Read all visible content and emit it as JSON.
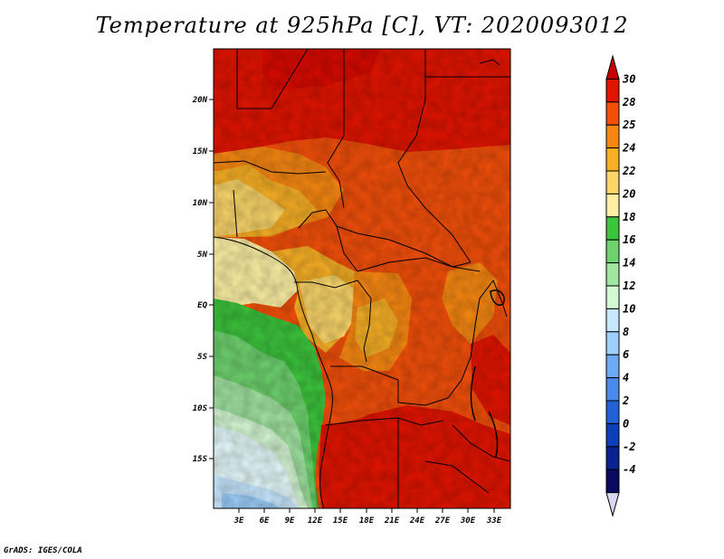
{
  "title": "Temperature at 925hPa [C], VT: 2020093012",
  "credit": "GrADS: IGES/COLA",
  "map": {
    "lat_labels": [
      "20N",
      "15N",
      "10N",
      "5N",
      "EQ",
      "5S",
      "10S",
      "15S"
    ],
    "lon_labels": [
      "3E",
      "6E",
      "9E",
      "12E",
      "15E",
      "18E",
      "21E",
      "24E",
      "27E",
      "30E",
      "33E"
    ]
  },
  "colorbar": {
    "labels": [
      "30",
      "28",
      "25",
      "24",
      "22",
      "20",
      "18",
      "16",
      "14",
      "12",
      "10",
      "8",
      "6",
      "4",
      "2",
      "0",
      "-2",
      "-4"
    ],
    "colors": [
      "#c80000",
      "#e21400",
      "#f24f0a",
      "#f68712",
      "#f7b025",
      "#f9d56a",
      "#fdf0a4",
      "#3cc43c",
      "#6ed26e",
      "#a2e4a2",
      "#d4f8d4",
      "#c8e8ff",
      "#9ed0fb",
      "#6eaaf2",
      "#4a8ae8",
      "#2262d6",
      "#0c3fb8",
      "#0a2290",
      "#0b0b5c",
      "#d8d8f0"
    ]
  }
}
